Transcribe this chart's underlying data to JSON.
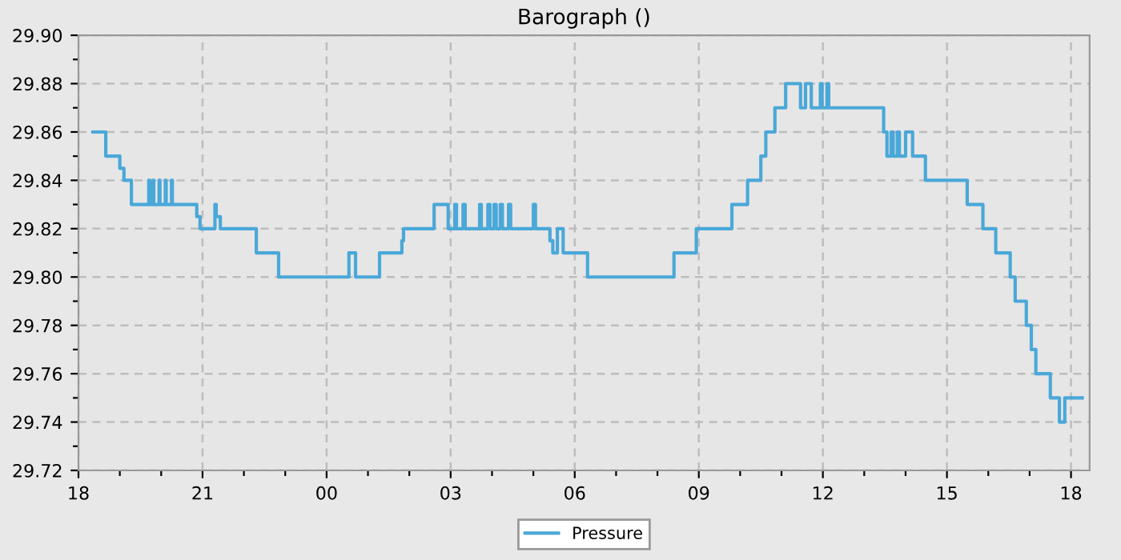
{
  "chart_data": {
    "type": "step",
    "title": "Barograph ()",
    "x": [
      18.35,
      18.66,
      19.0,
      19.1,
      19.28,
      19.7,
      19.72,
      19.8,
      19.82,
      19.95,
      19.97,
      20.1,
      20.12,
      20.25,
      20.27,
      20.86,
      20.94,
      21.3,
      21.33,
      21.43,
      22.3,
      22.84,
      24.54,
      24.7,
      25.28,
      25.82,
      25.86,
      26.6,
      26.94,
      27.1,
      27.14,
      27.3,
      27.35,
      27.7,
      27.74,
      27.9,
      27.95,
      28.05,
      28.1,
      28.2,
      28.25,
      28.4,
      28.45,
      29.0,
      29.05,
      29.15,
      29.4,
      29.47,
      29.58,
      29.72,
      30.31,
      32.4,
      32.94,
      33.8,
      34.18,
      34.5,
      34.62,
      34.84,
      35.1,
      35.46,
      35.58,
      35.72,
      35.94,
      35.98,
      36.1,
      36.14,
      36.25,
      37.47,
      37.55,
      37.65,
      37.7,
      37.8,
      37.85,
      38.0,
      38.17,
      38.48,
      39.49,
      39.87,
      40.18,
      40.53,
      40.65,
      40.92,
      41.04,
      41.15,
      41.5,
      41.72,
      41.85,
      42.0,
      42.27
    ],
    "series": [
      {
        "name": "Pressure",
        "color": "#4aa8d8",
        "values": [
          29.86,
          29.85,
          29.845,
          29.84,
          29.83,
          29.84,
          29.83,
          29.84,
          29.83,
          29.84,
          29.83,
          29.84,
          29.83,
          29.84,
          29.83,
          29.825,
          29.82,
          29.83,
          29.825,
          29.82,
          29.81,
          29.8,
          29.81,
          29.8,
          29.81,
          29.815,
          29.82,
          29.83,
          29.82,
          29.83,
          29.82,
          29.83,
          29.82,
          29.83,
          29.82,
          29.83,
          29.82,
          29.83,
          29.82,
          29.83,
          29.82,
          29.83,
          29.82,
          29.83,
          29.82,
          29.82,
          29.815,
          29.81,
          29.82,
          29.81,
          29.8,
          29.81,
          29.82,
          29.83,
          29.84,
          29.85,
          29.86,
          29.87,
          29.88,
          29.87,
          29.88,
          29.87,
          29.88,
          29.87,
          29.88,
          29.87,
          29.87,
          29.86,
          29.85,
          29.86,
          29.85,
          29.86,
          29.85,
          29.86,
          29.85,
          29.84,
          29.83,
          29.82,
          29.81,
          29.8,
          29.79,
          29.78,
          29.77,
          29.76,
          29.75,
          29.74,
          29.75,
          29.75,
          29.75
        ]
      }
    ],
    "xlim": [
      18,
      42.45
    ],
    "ylim": [
      29.72,
      29.9
    ],
    "xticks": [
      {
        "value": 18,
        "label": "18"
      },
      {
        "value": 19,
        "label": null
      },
      {
        "value": 20,
        "label": null
      },
      {
        "value": 21,
        "label": "21"
      },
      {
        "value": 22,
        "label": null
      },
      {
        "value": 23,
        "label": null
      },
      {
        "value": 24,
        "label": "00"
      },
      {
        "value": 25,
        "label": null
      },
      {
        "value": 26,
        "label": null
      },
      {
        "value": 27,
        "label": "03"
      },
      {
        "value": 28,
        "label": null
      },
      {
        "value": 29,
        "label": null
      },
      {
        "value": 30,
        "label": "06"
      },
      {
        "value": 31,
        "label": null
      },
      {
        "value": 32,
        "label": null
      },
      {
        "value": 33,
        "label": "09"
      },
      {
        "value": 34,
        "label": null
      },
      {
        "value": 35,
        "label": null
      },
      {
        "value": 36,
        "label": "12"
      },
      {
        "value": 37,
        "label": null
      },
      {
        "value": 38,
        "label": null
      },
      {
        "value": 39,
        "label": "15"
      },
      {
        "value": 40,
        "label": null
      },
      {
        "value": 41,
        "label": null
      },
      {
        "value": 42,
        "label": "18"
      }
    ],
    "yticks": [
      {
        "value": 29.72,
        "label": "29.72"
      },
      {
        "value": 29.73,
        "label": null
      },
      {
        "value": 29.74,
        "label": "29.74"
      },
      {
        "value": 29.75,
        "label": null
      },
      {
        "value": 29.76,
        "label": "29.76"
      },
      {
        "value": 29.77,
        "label": null
      },
      {
        "value": 29.78,
        "label": "29.78"
      },
      {
        "value": 29.79,
        "label": null
      },
      {
        "value": 29.8,
        "label": "29.80"
      },
      {
        "value": 29.81,
        "label": null
      },
      {
        "value": 29.82,
        "label": "29.82"
      },
      {
        "value": 29.83,
        "label": null
      },
      {
        "value": 29.84,
        "label": "29.84"
      },
      {
        "value": 29.85,
        "label": null
      },
      {
        "value": 29.86,
        "label": "29.86"
      },
      {
        "value": 29.87,
        "label": null
      },
      {
        "value": 29.88,
        "label": "29.88"
      },
      {
        "value": 29.89,
        "label": null
      },
      {
        "value": 29.9,
        "label": "29.90"
      }
    ],
    "grid": true,
    "legend": "bottom",
    "line_style": "solid"
  }
}
